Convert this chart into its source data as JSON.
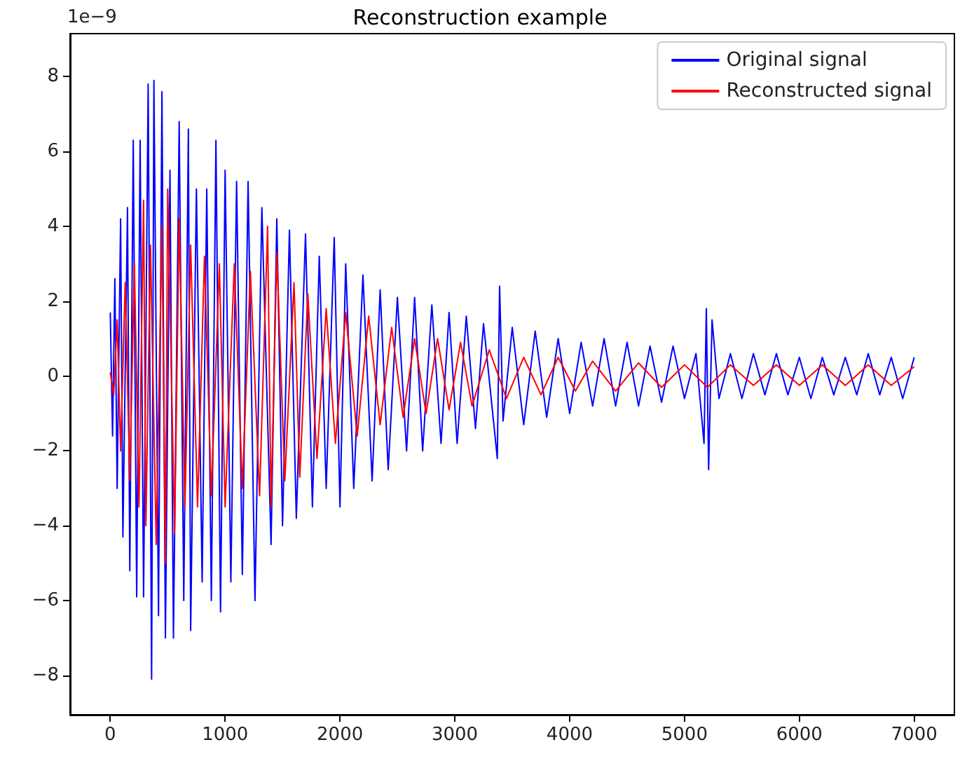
{
  "chart_data": {
    "type": "line",
    "title": "Reconstruction example",
    "annotations": [
      "1e−9"
    ],
    "xlim": [
      -350,
      7350
    ],
    "xticks": [
      0,
      1000,
      2000,
      3000,
      4000,
      5000,
      6000,
      7000
    ],
    "ylim": [
      -9.05,
      9.15
    ],
    "yticks": [
      {
        "value": -8,
        "label": "−8"
      },
      {
        "value": -6,
        "label": "−6"
      },
      {
        "value": -4,
        "label": "−4"
      },
      {
        "value": -2,
        "label": "−2"
      },
      0,
      2,
      4,
      6,
      8
    ],
    "grid": false,
    "legend": "top right",
    "marker": "none",
    "line_style": "solid",
    "series": [
      {
        "name": "Original signal",
        "color": "#0000ff",
        "x": [
          0,
          20,
          40,
          60,
          90,
          110,
          150,
          170,
          200,
          230,
          260,
          290,
          330,
          360,
          380,
          420,
          450,
          480,
          520,
          550,
          600,
          640,
          680,
          700,
          750,
          800,
          840,
          880,
          920,
          960,
          1000,
          1050,
          1100,
          1150,
          1200,
          1260,
          1320,
          1400,
          1450,
          1500,
          1560,
          1620,
          1700,
          1760,
          1820,
          1880,
          1950,
          2000,
          2050,
          2120,
          2200,
          2280,
          2350,
          2420,
          2500,
          2580,
          2650,
          2720,
          2800,
          2880,
          2950,
          3020,
          3100,
          3180,
          3250,
          3370,
          3390,
          3420,
          3500,
          3600,
          3700,
          3800,
          3900,
          4000,
          4100,
          4200,
          4300,
          4400,
          4500,
          4600,
          4700,
          4800,
          4900,
          5000,
          5100,
          5170,
          5190,
          5210,
          5240,
          5300,
          5400,
          5500,
          5600,
          5700,
          5800,
          5900,
          6000,
          6100,
          6200,
          6300,
          6400,
          6500,
          6600,
          6700,
          6800,
          6900,
          7000
        ],
        "values": [
          1.7,
          -1.6,
          2.6,
          -3.0,
          4.2,
          -4.3,
          4.5,
          -5.2,
          6.3,
          -5.9,
          6.3,
          -5.9,
          7.8,
          -8.1,
          7.9,
          -6.4,
          7.6,
          -7.0,
          5.5,
          -7.0,
          6.8,
          -6.0,
          6.6,
          -6.8,
          5.0,
          -5.5,
          5.0,
          -6.0,
          6.3,
          -6.3,
          5.5,
          -5.5,
          5.2,
          -5.3,
          5.2,
          -6.0,
          4.5,
          -4.5,
          4.2,
          -4.0,
          3.9,
          -3.8,
          3.8,
          -3.5,
          3.2,
          -3.0,
          3.7,
          -3.5,
          3.0,
          -3.0,
          2.7,
          -2.8,
          2.3,
          -2.5,
          2.1,
          -2.0,
          2.1,
          -2.0,
          1.9,
          -1.8,
          1.7,
          -1.8,
          1.6,
          -1.4,
          1.4,
          -2.2,
          2.4,
          -1.2,
          1.3,
          -1.3,
          1.2,
          -1.1,
          1.0,
          -1.0,
          0.9,
          -0.8,
          1.0,
          -0.8,
          0.9,
          -0.8,
          0.8,
          -0.7,
          0.8,
          -0.6,
          0.6,
          -1.8,
          1.8,
          -2.5,
          1.5,
          -0.6,
          0.6,
          -0.6,
          0.6,
          -0.5,
          0.6,
          -0.5,
          0.5,
          -0.6,
          0.5,
          -0.5,
          0.5,
          -0.5,
          0.6,
          -0.5,
          0.5,
          -0.6,
          0.5
        ]
      },
      {
        "name": "Reconstructed signal",
        "color": "#ff0000",
        "x": [
          0,
          30,
          60,
          90,
          130,
          170,
          210,
          250,
          290,
          310,
          350,
          400,
          450,
          480,
          500,
          560,
          600,
          650,
          700,
          760,
          820,
          880,
          950,
          1000,
          1080,
          1150,
          1220,
          1300,
          1370,
          1400,
          1450,
          1520,
          1600,
          1650,
          1720,
          1800,
          1880,
          1960,
          2050,
          2150,
          2250,
          2350,
          2450,
          2550,
          2650,
          2750,
          2850,
          2950,
          3050,
          3150,
          3300,
          3450,
          3600,
          3750,
          3900,
          4050,
          4200,
          4400,
          4600,
          4800,
          5000,
          5200,
          5400,
          5600,
          5800,
          6000,
          6200,
          6400,
          6600,
          6800,
          7000
        ],
        "values": [
          0.1,
          -0.5,
          1.5,
          -2.0,
          2.5,
          -2.8,
          3.0,
          -3.5,
          4.7,
          -4.0,
          3.5,
          -4.5,
          4.0,
          -5.0,
          5.0,
          -4.2,
          4.2,
          -3.5,
          3.5,
          -3.5,
          3.2,
          -3.2,
          3.0,
          -3.5,
          3.0,
          -3.0,
          2.8,
          -3.2,
          4.0,
          -3.5,
          3.3,
          -2.8,
          2.5,
          -2.7,
          2.2,
          -2.2,
          1.8,
          -1.8,
          1.7,
          -1.6,
          1.6,
          -1.3,
          1.3,
          -1.1,
          1.0,
          -1.0,
          1.0,
          -0.9,
          0.9,
          -0.8,
          0.7,
          -0.6,
          0.5,
          -0.5,
          0.5,
          -0.4,
          0.4,
          -0.4,
          0.35,
          -0.3,
          0.3,
          -0.3,
          0.3,
          -0.25,
          0.3,
          -0.25,
          0.3,
          -0.25,
          0.3,
          -0.25,
          0.25
        ]
      }
    ]
  }
}
